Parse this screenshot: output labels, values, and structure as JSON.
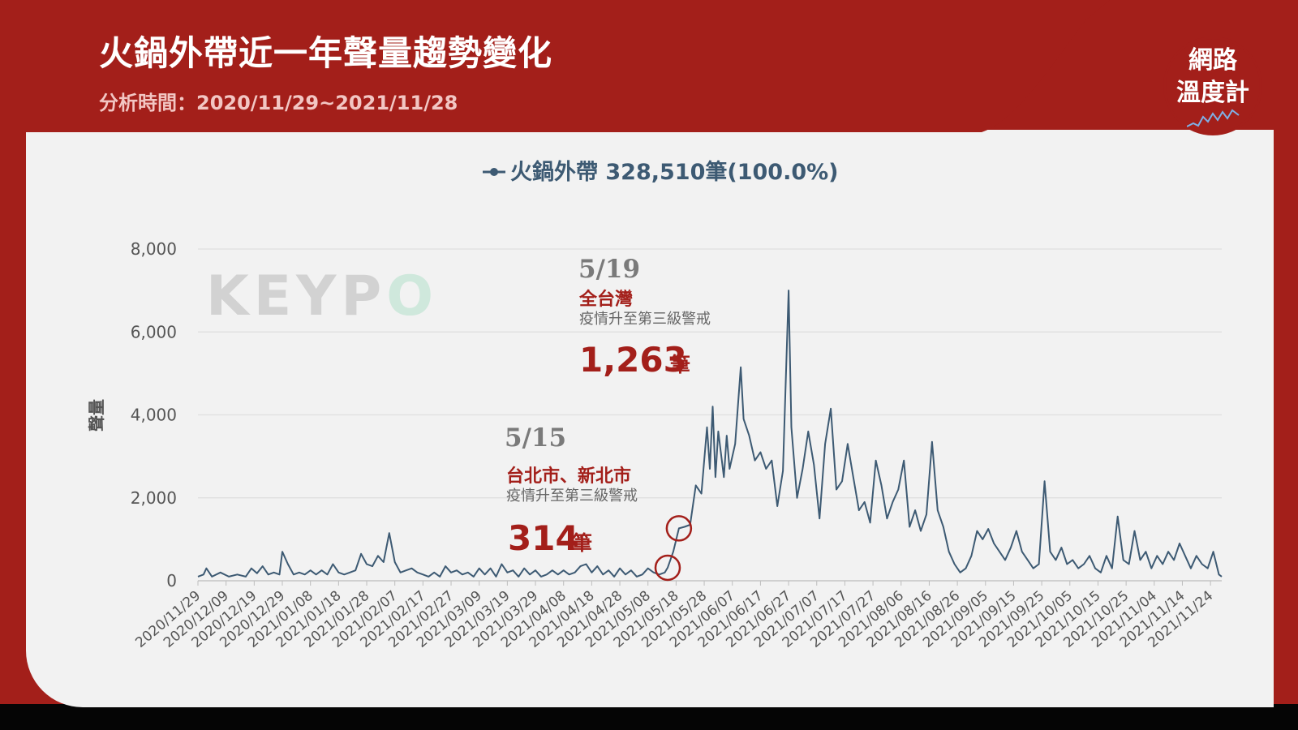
{
  "header": {
    "title": "火鍋外帶近一年聲量趨勢變化",
    "subtitle": "分析時間：2020/11/29~2021/11/28"
  },
  "logo": {
    "line1": "網路",
    "line2": "溫度計"
  },
  "watermark": "KEYPO",
  "colors": {
    "brand_red": "#a31f1a",
    "series_line": "#3d5a73",
    "card_bg": "#f2f2f2"
  },
  "chart_data": {
    "type": "line",
    "title": "",
    "ylabel": "聲量",
    "xlabel": "",
    "ylim": [
      0,
      8000
    ],
    "yticks": [
      "0",
      "2,000",
      "4,000",
      "6,000",
      "8,000"
    ],
    "yticks_values": [
      0,
      2000,
      4000,
      6000,
      8000
    ],
    "grid": true,
    "legend": {
      "position": "top-center",
      "label": "火鍋外帶 328,510筆(100.0%)"
    },
    "xticks": [
      "2020/11/29",
      "2020/12/09",
      "2020/12/19",
      "2020/12/29",
      "2021/01/08",
      "2021/01/18",
      "2021/01/28",
      "2021/02/07",
      "2021/02/17",
      "2021/02/27",
      "2021/03/09",
      "2021/03/19",
      "2021/03/29",
      "2021/04/08",
      "2021/04/18",
      "2021/04/28",
      "2021/05/08",
      "2021/05/18",
      "2021/05/28",
      "2021/06/07",
      "2021/06/17",
      "2021/06/27",
      "2021/07/07",
      "2021/07/17",
      "2021/07/27",
      "2021/08/06",
      "2021/08/16",
      "2021/08/26",
      "2021/09/05",
      "2021/09/15",
      "2021/09/25",
      "2021/10/05",
      "2021/10/15",
      "2021/10/25",
      "2021/11/04",
      "2021/11/14",
      "2021/11/24"
    ],
    "x_start": "2020/11/29",
    "x_end": "2021/11/28",
    "series": [
      {
        "name": "火鍋外帶",
        "color": "#3d5a73",
        "points": [
          [
            "2020/11/29",
            100
          ],
          [
            "2020/12/01",
            150
          ],
          [
            "2020/12/02",
            300
          ],
          [
            "2020/12/04",
            100
          ],
          [
            "2020/12/07",
            200
          ],
          [
            "2020/12/10",
            100
          ],
          [
            "2020/12/13",
            150
          ],
          [
            "2020/12/16",
            100
          ],
          [
            "2020/12/18",
            300
          ],
          [
            "2020/12/20",
            180
          ],
          [
            "2020/12/22",
            350
          ],
          [
            "2020/12/24",
            150
          ],
          [
            "2020/12/26",
            200
          ],
          [
            "2020/12/28",
            150
          ],
          [
            "2020/12/29",
            700
          ],
          [
            "2020/12/31",
            400
          ],
          [
            "2021/01/02",
            150
          ],
          [
            "2021/01/04",
            200
          ],
          [
            "2021/01/06",
            150
          ],
          [
            "2021/01/08",
            250
          ],
          [
            "2021/01/10",
            150
          ],
          [
            "2021/01/12",
            250
          ],
          [
            "2021/01/14",
            150
          ],
          [
            "2021/01/16",
            400
          ],
          [
            "2021/01/18",
            200
          ],
          [
            "2021/01/20",
            150
          ],
          [
            "2021/01/22",
            200
          ],
          [
            "2021/01/24",
            250
          ],
          [
            "2021/01/26",
            650
          ],
          [
            "2021/01/28",
            400
          ],
          [
            "2021/01/30",
            350
          ],
          [
            "2021/02/01",
            600
          ],
          [
            "2021/02/03",
            450
          ],
          [
            "2021/02/05",
            1150
          ],
          [
            "2021/02/07",
            450
          ],
          [
            "2021/02/09",
            200
          ],
          [
            "2021/02/11",
            250
          ],
          [
            "2021/02/13",
            300
          ],
          [
            "2021/02/15",
            200
          ],
          [
            "2021/02/17",
            150
          ],
          [
            "2021/02/19",
            100
          ],
          [
            "2021/02/21",
            200
          ],
          [
            "2021/02/23",
            100
          ],
          [
            "2021/02/25",
            350
          ],
          [
            "2021/02/27",
            200
          ],
          [
            "2021/03/01",
            250
          ],
          [
            "2021/03/03",
            150
          ],
          [
            "2021/03/05",
            200
          ],
          [
            "2021/03/07",
            100
          ],
          [
            "2021/03/09",
            300
          ],
          [
            "2021/03/11",
            150
          ],
          [
            "2021/03/13",
            300
          ],
          [
            "2021/03/15",
            100
          ],
          [
            "2021/03/17",
            400
          ],
          [
            "2021/03/19",
            200
          ],
          [
            "2021/03/21",
            250
          ],
          [
            "2021/03/23",
            100
          ],
          [
            "2021/03/25",
            300
          ],
          [
            "2021/03/27",
            150
          ],
          [
            "2021/03/29",
            250
          ],
          [
            "2021/03/31",
            100
          ],
          [
            "2021/04/02",
            150
          ],
          [
            "2021/04/04",
            250
          ],
          [
            "2021/04/06",
            150
          ],
          [
            "2021/04/08",
            250
          ],
          [
            "2021/04/10",
            150
          ],
          [
            "2021/04/12",
            200
          ],
          [
            "2021/04/14",
            350
          ],
          [
            "2021/04/16",
            400
          ],
          [
            "2021/04/18",
            200
          ],
          [
            "2021/04/20",
            350
          ],
          [
            "2021/04/22",
            150
          ],
          [
            "2021/04/24",
            250
          ],
          [
            "2021/04/26",
            100
          ],
          [
            "2021/04/28",
            300
          ],
          [
            "2021/04/30",
            150
          ],
          [
            "2021/05/02",
            250
          ],
          [
            "2021/05/04",
            100
          ],
          [
            "2021/05/06",
            150
          ],
          [
            "2021/05/08",
            300
          ],
          [
            "2021/05/10",
            200
          ],
          [
            "2021/05/12",
            150
          ],
          [
            "2021/05/14",
            200
          ],
          [
            "2021/05/15",
            314
          ],
          [
            "2021/05/17",
            700
          ],
          [
            "2021/05/19",
            1263
          ],
          [
            "2021/05/21",
            1300
          ],
          [
            "2021/05/23",
            1350
          ],
          [
            "2021/05/25",
            2300
          ],
          [
            "2021/05/27",
            2100
          ],
          [
            "2021/05/29",
            3700
          ],
          [
            "2021/05/30",
            2700
          ],
          [
            "2021/05/31",
            4200
          ],
          [
            "2021/06/01",
            2500
          ],
          [
            "2021/06/02",
            3600
          ],
          [
            "2021/06/04",
            2500
          ],
          [
            "2021/06/05",
            3500
          ],
          [
            "2021/06/06",
            2700
          ],
          [
            "2021/06/08",
            3300
          ],
          [
            "2021/06/10",
            5150
          ],
          [
            "2021/06/11",
            3900
          ],
          [
            "2021/06/13",
            3500
          ],
          [
            "2021/06/15",
            2900
          ],
          [
            "2021/06/17",
            3100
          ],
          [
            "2021/06/19",
            2700
          ],
          [
            "2021/06/21",
            2900
          ],
          [
            "2021/06/23",
            1800
          ],
          [
            "2021/06/25",
            2650
          ],
          [
            "2021/06/27",
            7000
          ],
          [
            "2021/06/28",
            3700
          ],
          [
            "2021/06/30",
            2000
          ],
          [
            "2021/07/02",
            2700
          ],
          [
            "2021/07/04",
            3600
          ],
          [
            "2021/07/06",
            2800
          ],
          [
            "2021/07/08",
            1500
          ],
          [
            "2021/07/10",
            3300
          ],
          [
            "2021/07/12",
            4150
          ],
          [
            "2021/07/14",
            2200
          ],
          [
            "2021/07/16",
            2400
          ],
          [
            "2021/07/18",
            3300
          ],
          [
            "2021/07/20",
            2500
          ],
          [
            "2021/07/22",
            1700
          ],
          [
            "2021/07/24",
            1900
          ],
          [
            "2021/07/26",
            1400
          ],
          [
            "2021/07/28",
            2900
          ],
          [
            "2021/07/30",
            2300
          ],
          [
            "2021/08/01",
            1500
          ],
          [
            "2021/08/03",
            1900
          ],
          [
            "2021/08/05",
            2200
          ],
          [
            "2021/08/07",
            2900
          ],
          [
            "2021/08/09",
            1300
          ],
          [
            "2021/08/11",
            1700
          ],
          [
            "2021/08/13",
            1200
          ],
          [
            "2021/08/15",
            1600
          ],
          [
            "2021/08/17",
            3350
          ],
          [
            "2021/08/19",
            1700
          ],
          [
            "2021/08/21",
            1300
          ],
          [
            "2021/08/23",
            700
          ],
          [
            "2021/08/25",
            400
          ],
          [
            "2021/08/27",
            200
          ],
          [
            "2021/08/29",
            300
          ],
          [
            "2021/08/31",
            600
          ],
          [
            "2021/09/02",
            1200
          ],
          [
            "2021/09/04",
            1000
          ],
          [
            "2021/09/06",
            1250
          ],
          [
            "2021/09/08",
            900
          ],
          [
            "2021/09/10",
            700
          ],
          [
            "2021/09/12",
            500
          ],
          [
            "2021/09/14",
            800
          ],
          [
            "2021/09/16",
            1200
          ],
          [
            "2021/09/18",
            700
          ],
          [
            "2021/09/20",
            500
          ],
          [
            "2021/09/22",
            300
          ],
          [
            "2021/09/24",
            400
          ],
          [
            "2021/09/26",
            2400
          ],
          [
            "2021/09/28",
            700
          ],
          [
            "2021/09/30",
            500
          ],
          [
            "2021/10/02",
            800
          ],
          [
            "2021/10/04",
            400
          ],
          [
            "2021/10/06",
            500
          ],
          [
            "2021/10/08",
            300
          ],
          [
            "2021/10/10",
            400
          ],
          [
            "2021/10/12",
            600
          ],
          [
            "2021/10/14",
            300
          ],
          [
            "2021/10/16",
            200
          ],
          [
            "2021/10/18",
            600
          ],
          [
            "2021/10/20",
            300
          ],
          [
            "2021/10/22",
            1550
          ],
          [
            "2021/10/24",
            500
          ],
          [
            "2021/10/26",
            400
          ],
          [
            "2021/10/28",
            1200
          ],
          [
            "2021/10/30",
            500
          ],
          [
            "2021/11/01",
            700
          ],
          [
            "2021/11/03",
            300
          ],
          [
            "2021/11/05",
            600
          ],
          [
            "2021/11/07",
            400
          ],
          [
            "2021/11/09",
            700
          ],
          [
            "2021/11/11",
            500
          ],
          [
            "2021/11/13",
            900
          ],
          [
            "2021/11/15",
            600
          ],
          [
            "2021/11/17",
            300
          ],
          [
            "2021/11/19",
            600
          ],
          [
            "2021/11/21",
            400
          ],
          [
            "2021/11/23",
            300
          ],
          [
            "2021/11/25",
            700
          ],
          [
            "2021/11/27",
            150
          ],
          [
            "2021/11/28",
            100
          ]
        ]
      }
    ],
    "annotations": [
      {
        "date": "5/15",
        "region": "台北市、新北市",
        "desc": "疫情升至第三級警戒",
        "value": "314",
        "unit": "筆",
        "point": [
          "2021/05/15",
          314
        ]
      },
      {
        "date": "5/19",
        "region": "全台灣",
        "desc": "疫情升至第三級警戒",
        "value": "1,263",
        "unit": "筆",
        "point": [
          "2021/05/19",
          1263
        ]
      }
    ]
  }
}
